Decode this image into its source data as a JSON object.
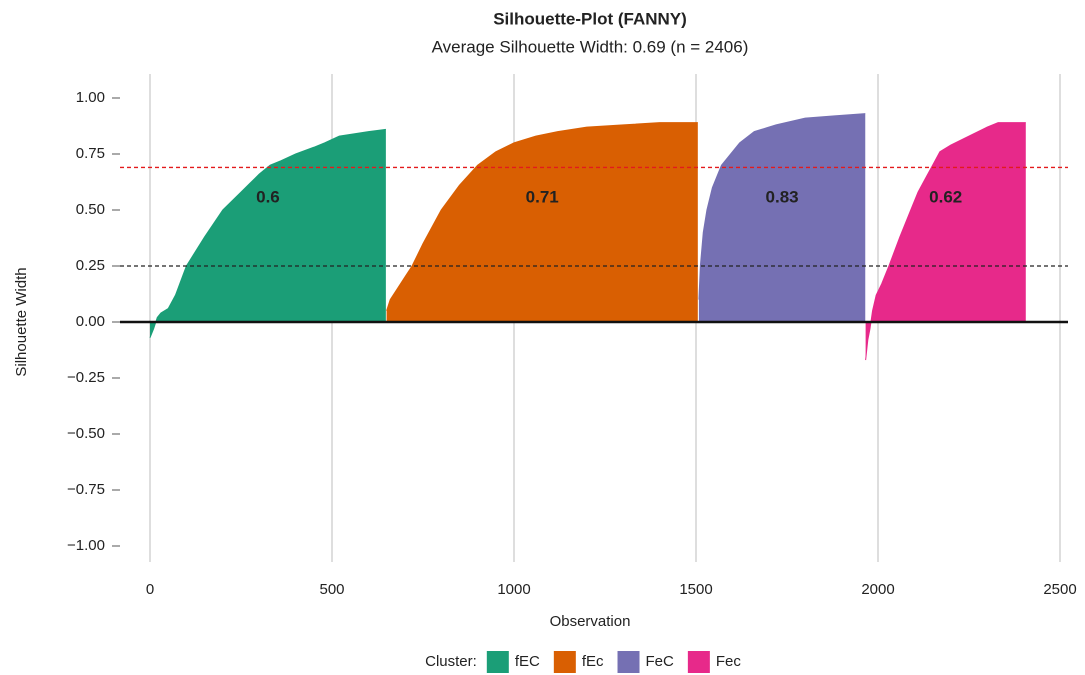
{
  "chart_data": {
    "type": "area",
    "title": "Silhouette-Plot (FANNY)",
    "subtitle": "Average Silhouette Width: 0.69 (n = 2406)",
    "x_label": "Observation",
    "y_label": "Silhouette Width",
    "legend_title": "Cluster:",
    "xlim": [
      0,
      2500
    ],
    "xticks": [
      0,
      500,
      1000,
      1500,
      2000,
      2500
    ],
    "ylim": [
      -1,
      1
    ],
    "yticks": [
      {
        "value": -1,
        "label": "−1.00"
      },
      {
        "value": -0.75,
        "label": "−0.75"
      },
      {
        "value": -0.5,
        "label": "−0.50"
      },
      {
        "value": -0.25,
        "label": "−0.25"
      },
      {
        "value": 0,
        "label": "0.00"
      },
      {
        "value": 0.25,
        "label": "0.25"
      },
      {
        "value": 0.5,
        "label": "0.50"
      },
      {
        "value": 0.75,
        "label": "0.75"
      },
      {
        "value": 1,
        "label": "1.00"
      }
    ],
    "grid": true,
    "reference_lines": [
      {
        "value": 0.69,
        "color": "#e31a1c"
      },
      {
        "value": 0.25,
        "color": "#222222"
      }
    ],
    "series": [
      {
        "name": "fEC",
        "color": "#1b9e77",
        "avg_width": 0.6,
        "x": [
          0,
          10,
          20,
          30,
          50,
          70,
          100,
          150,
          200,
          250,
          275,
          300,
          330,
          360,
          400,
          450,
          480,
          520,
          560,
          600,
          648
        ],
        "values": [
          -0.07,
          -0.03,
          0.02,
          0.04,
          0.06,
          0.12,
          0.25,
          0.38,
          0.5,
          0.58,
          0.62,
          0.66,
          0.7,
          0.72,
          0.75,
          0.78,
          0.8,
          0.83,
          0.84,
          0.85,
          0.86
        ]
      },
      {
        "name": "fEc",
        "color": "#d95f02",
        "avg_width": 0.71,
        "x": [
          650,
          660,
          680,
          700,
          720,
          750,
          800,
          850,
          900,
          950,
          1000,
          1060,
          1120,
          1200,
          1300,
          1400,
          1505
        ],
        "values": [
          0.05,
          0.1,
          0.15,
          0.2,
          0.25,
          0.35,
          0.5,
          0.61,
          0.7,
          0.76,
          0.8,
          0.83,
          0.85,
          0.87,
          0.88,
          0.89,
          0.89
        ]
      },
      {
        "name": "FeC",
        "color": "#7570b3",
        "avg_width": 0.83,
        "x": [
          1508,
          1512,
          1520,
          1530,
          1545,
          1570,
          1600,
          1620,
          1660,
          1720,
          1800,
          1880,
          1965
        ],
        "values": [
          0.1,
          0.25,
          0.4,
          0.5,
          0.6,
          0.7,
          0.76,
          0.8,
          0.85,
          0.88,
          0.91,
          0.92,
          0.93
        ]
      },
      {
        "name": "Fec",
        "color": "#e7298a",
        "avg_width": 0.62,
        "x": [
          1966,
          1972,
          1978,
          1985,
          1995,
          2010,
          2030,
          2060,
          2090,
          2110,
          2130,
          2150,
          2170,
          2200,
          2250,
          2300,
          2330,
          2406
        ],
        "values": [
          -0.17,
          -0.08,
          -0.03,
          0.05,
          0.12,
          0.17,
          0.25,
          0.38,
          0.5,
          0.58,
          0.64,
          0.7,
          0.76,
          0.79,
          0.83,
          0.87,
          0.89,
          0.89
        ]
      }
    ]
  }
}
